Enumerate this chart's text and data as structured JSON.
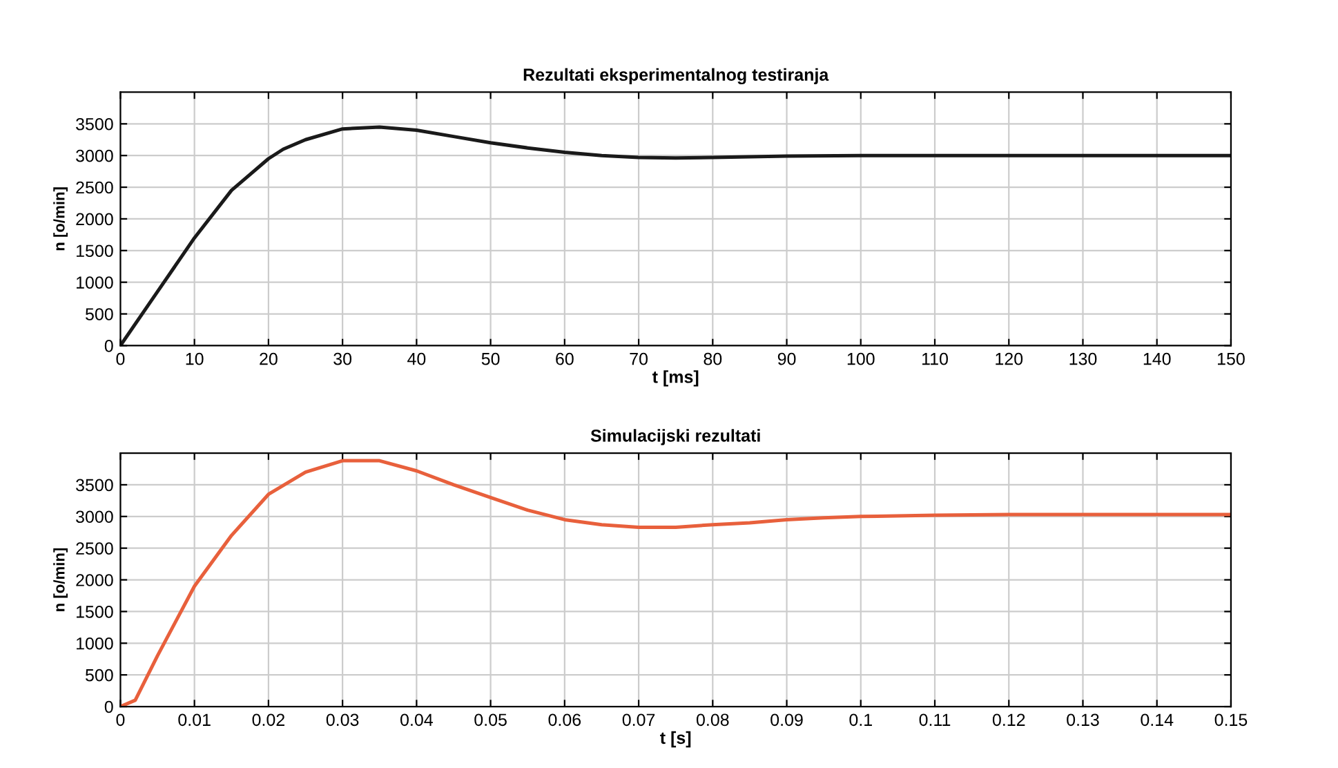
{
  "chart_data": [
    {
      "type": "line",
      "title": "Rezultati eksperimentalnog testiranja",
      "xlabel": "t [ms]",
      "ylabel": "n [o/min]",
      "series": [
        {
          "color": "#1a1a1a",
          "x": [
            0,
            5,
            10,
            15,
            20,
            22,
            25,
            30,
            35,
            40,
            45,
            50,
            55,
            60,
            65,
            70,
            75,
            80,
            90,
            100,
            110,
            120,
            130,
            140,
            150
          ],
          "values": [
            0,
            850,
            1700,
            2450,
            2950,
            3100,
            3250,
            3420,
            3450,
            3400,
            3300,
            3200,
            3120,
            3050,
            3000,
            2970,
            2960,
            2970,
            2990,
            3000,
            3000,
            3000,
            3000,
            3000,
            3000
          ]
        }
      ],
      "xlim": [
        0,
        150
      ],
      "xticks": [
        0,
        10,
        20,
        30,
        40,
        50,
        60,
        70,
        80,
        90,
        100,
        110,
        120,
        130,
        140,
        150
      ],
      "ylim": [
        0,
        4000
      ],
      "yticks": [
        0,
        500,
        1000,
        1500,
        2000,
        2500,
        3000,
        3500
      ],
      "grid": true
    },
    {
      "type": "line",
      "title": "Simulacijski rezultati",
      "xlabel": "t [s]",
      "ylabel": "n [o/min]",
      "series": [
        {
          "color": "#e8603c",
          "x": [
            0,
            0.002,
            0.005,
            0.01,
            0.015,
            0.02,
            0.025,
            0.03,
            0.035,
            0.04,
            0.045,
            0.05,
            0.055,
            0.06,
            0.065,
            0.07,
            0.075,
            0.08,
            0.085,
            0.09,
            0.095,
            0.1,
            0.11,
            0.12,
            0.13,
            0.14,
            0.15
          ],
          "values": [
            0,
            100,
            800,
            1900,
            2700,
            3350,
            3700,
            3880,
            3880,
            3720,
            3500,
            3300,
            3100,
            2950,
            2870,
            2830,
            2830,
            2870,
            2900,
            2950,
            2980,
            3000,
            3020,
            3030,
            3030,
            3030,
            3030
          ]
        }
      ],
      "xlim": [
        0,
        0.15
      ],
      "xticks": [
        0,
        0.01,
        0.02,
        0.03,
        0.04,
        0.05,
        0.06,
        0.07,
        0.08,
        0.09,
        0.1,
        0.11,
        0.12,
        0.13,
        0.14,
        0.15
      ],
      "ylim": [
        0,
        4000
      ],
      "yticks": [
        0,
        500,
        1000,
        1500,
        2000,
        2500,
        3000,
        3500
      ],
      "grid": true
    }
  ]
}
